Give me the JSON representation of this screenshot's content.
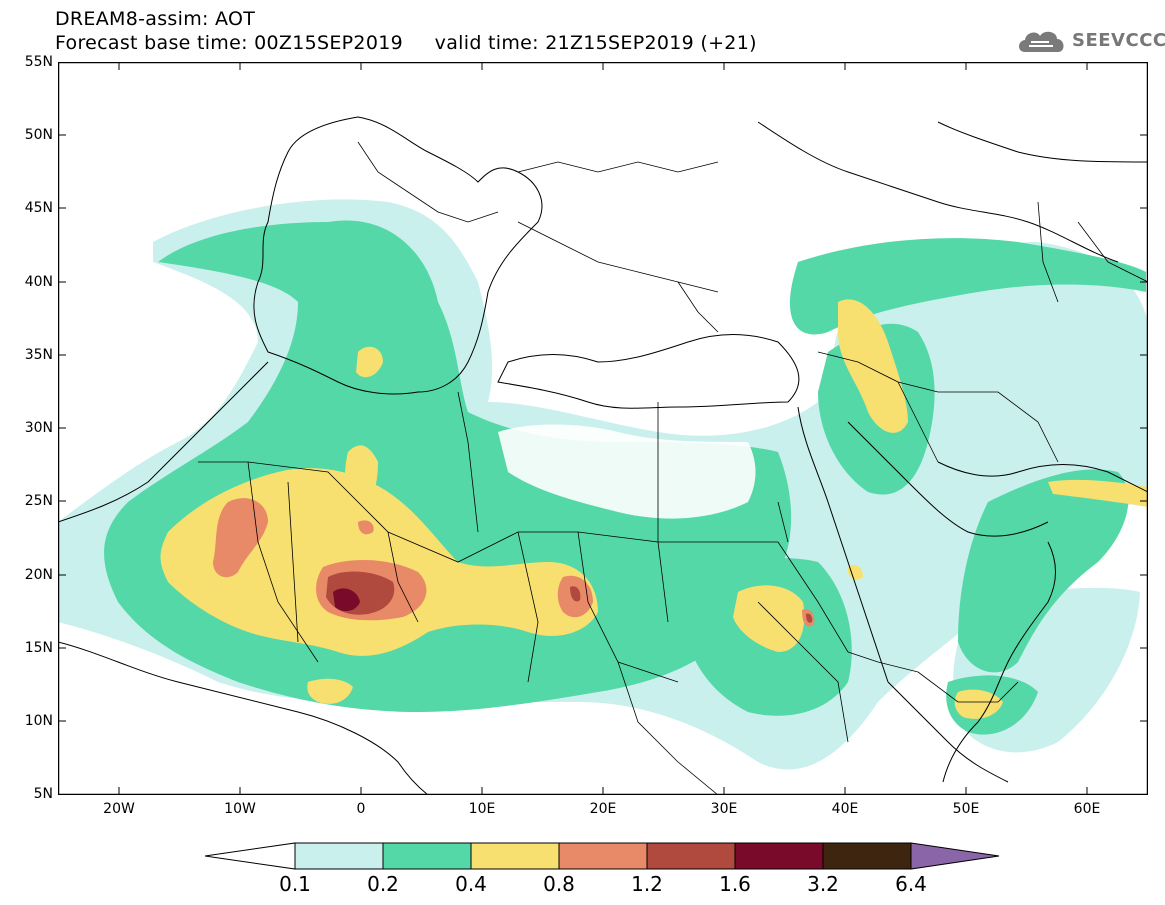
{
  "header": {
    "title_line1": "DREAM8-assim: AOT",
    "title_line2": "Forecast base time: 00Z15SEP2019     valid time: 21Z15SEP2019 (+21)",
    "logo_text": "SEEVCCC"
  },
  "map": {
    "lat_labels": [
      "55N",
      "50N",
      "45N",
      "40N",
      "35N",
      "30N",
      "25N",
      "20N",
      "15N",
      "10N",
      "5N"
    ],
    "lon_labels": [
      "20W",
      "10W",
      "0",
      "10E",
      "20E",
      "30E",
      "40E",
      "50E",
      "60E"
    ],
    "lat_range": [
      5,
      55
    ],
    "lon_range": [
      -25,
      65
    ]
  },
  "colorbar": {
    "labels": [
      "0.1",
      "0.2",
      "0.4",
      "0.8",
      "1.2",
      "1.6",
      "3.2",
      "6.4"
    ],
    "colors": [
      "#c9f0ec",
      "#54d8a8",
      "#f7e070",
      "#e88a68",
      "#b04a3e",
      "#7a0a2a",
      "#3e2510",
      "#8a66a8"
    ]
  },
  "colors": {
    "level_0_1": "#c9f0ec",
    "level_0_2": "#54d8a8",
    "level_0_4": "#f7e070",
    "level_0_8": "#e88a68",
    "level_1_2": "#b04a3e",
    "level_1_6": "#7a0a2a",
    "level_3_2": "#3e2510",
    "level_6_4": "#8a66a8"
  },
  "icons": {
    "logo": "cloud-icon"
  }
}
